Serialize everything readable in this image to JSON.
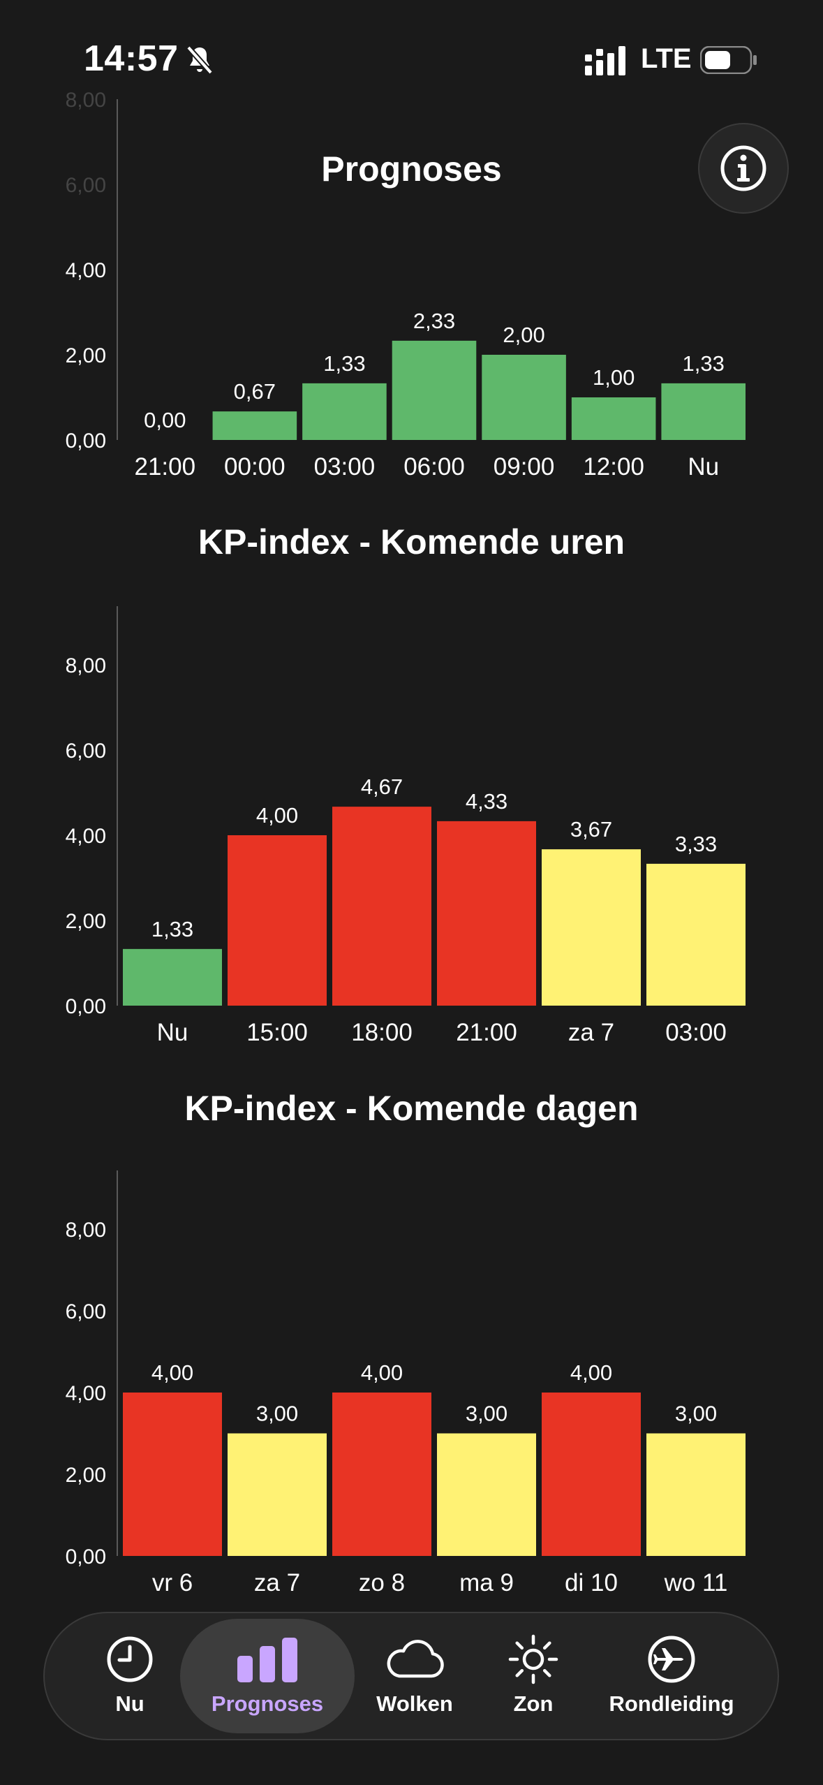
{
  "status_bar": {
    "time": "14:57",
    "network": "LTE"
  },
  "page": {
    "title": "Prognoses"
  },
  "colors": {
    "green": "#5fb86b",
    "red": "#e83424",
    "yellow": "#fff274",
    "active_tab": "#c9a6ff"
  },
  "chart_data": [
    {
      "type": "bar",
      "title": "",
      "categories": [
        "21:00",
        "00:00",
        "03:00",
        "06:00",
        "09:00",
        "12:00",
        "Nu"
      ],
      "values": [
        0.0,
        0.67,
        1.33,
        2.33,
        2.0,
        1.0,
        1.33
      ],
      "value_labels": [
        "0,00",
        "0,67",
        "1,33",
        "2,33",
        "2,00",
        "1,00",
        "1,33"
      ],
      "bar_colors": [
        "green",
        "green",
        "green",
        "green",
        "green",
        "green",
        "green"
      ],
      "y_ticks": [
        "0,00",
        "2,00",
        "4,00",
        "6,00",
        "8,00"
      ],
      "ylim": [
        0,
        8
      ]
    },
    {
      "type": "bar",
      "title": "KP-index - Komende uren",
      "categories": [
        "Nu",
        "15:00",
        "18:00",
        "21:00",
        "za 7",
        "03:00"
      ],
      "values": [
        1.33,
        4.0,
        4.67,
        4.33,
        3.67,
        3.33
      ],
      "value_labels": [
        "1,33",
        "4,00",
        "4,67",
        "4,33",
        "3,67",
        "3,33"
      ],
      "bar_colors": [
        "green",
        "red",
        "red",
        "red",
        "yellow",
        "yellow"
      ],
      "y_ticks": [
        "0,00",
        "2,00",
        "4,00",
        "6,00",
        "8,00"
      ],
      "ylim": [
        0,
        9
      ]
    },
    {
      "type": "bar",
      "title": "KP-index - Komende dagen",
      "categories": [
        "vr 6",
        "za 7",
        "zo 8",
        "ma 9",
        "di 10",
        "wo 11"
      ],
      "values": [
        4.0,
        3.0,
        4.0,
        3.0,
        4.0,
        3.0
      ],
      "value_labels": [
        "4,00",
        "3,00",
        "4,00",
        "3,00",
        "4,00",
        "3,00"
      ],
      "bar_colors": [
        "red",
        "yellow",
        "red",
        "yellow",
        "red",
        "yellow"
      ],
      "y_ticks": [
        "0,00",
        "2,00",
        "4,00",
        "6,00",
        "8,00"
      ],
      "ylim": [
        0,
        9
      ]
    }
  ],
  "tabs": [
    {
      "label": "Nu",
      "icon": "clock-icon",
      "active": false
    },
    {
      "label": "Prognoses",
      "icon": "bar-chart-icon",
      "active": true
    },
    {
      "label": "Wolken",
      "icon": "cloud-icon",
      "active": false
    },
    {
      "label": "Zon",
      "icon": "sun-icon",
      "active": false
    },
    {
      "label": "Rondleiding",
      "icon": "plane-icon",
      "active": false
    }
  ]
}
